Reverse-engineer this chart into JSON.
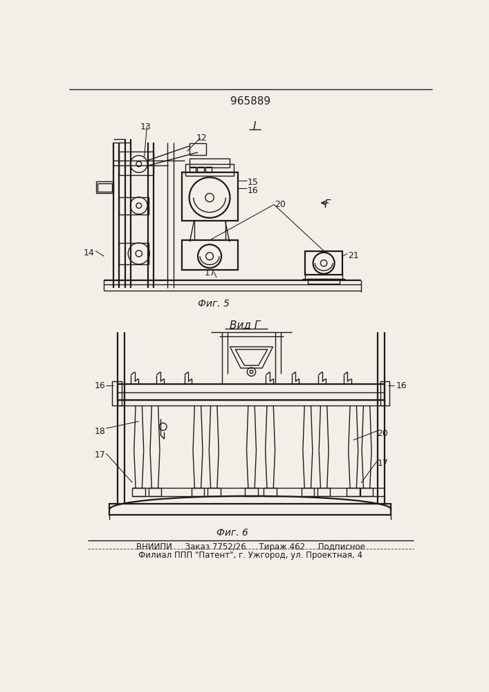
{
  "patent_number": "965889",
  "fig5_label": "Фиг. 5",
  "fig6_label": "Фиг. 6",
  "view_I": "I",
  "view_G": "Вид Г",
  "arrow_G": "Г",
  "footer1": "ВНИИПИ     Заказ 7752/26     Тираж 462     Подписное",
  "footer2": "Филиал ППП \"Патент\", г. Ужгород, ул. Проектная, 4",
  "bg": "#f2efe9",
  "lc": "#1a1a1a"
}
